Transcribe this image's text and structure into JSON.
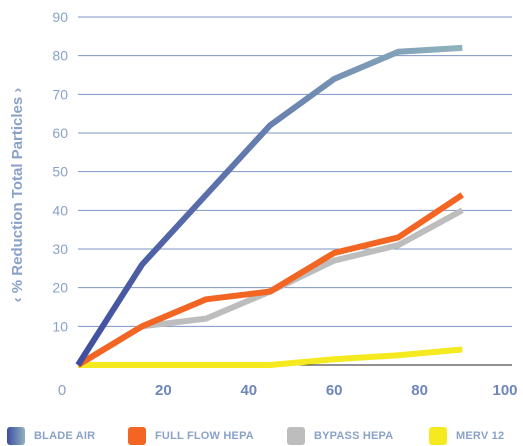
{
  "chart_data": {
    "type": "line",
    "title": "",
    "xlabel": "",
    "ylabel": "‹ % Reduction Total Particles ›",
    "xlim": [
      0,
      100
    ],
    "ylim": [
      0,
      90
    ],
    "x_ticks": [
      "0",
      "20",
      "40",
      "60",
      "80",
      "100"
    ],
    "y_ticks": [
      "10",
      "20",
      "30",
      "40",
      "50",
      "60",
      "70",
      "80",
      "90"
    ],
    "grid": "horizontal",
    "legend_position": "bottom",
    "series": [
      {
        "name": "BLADE AIR",
        "colors": [
          "#3f4da0",
          "#8fb2bd"
        ],
        "x": [
          0,
          15,
          30,
          45,
          60,
          75,
          90
        ],
        "y": [
          0,
          26,
          44,
          62,
          74,
          81,
          82
        ]
      },
      {
        "name": "FULL FLOW HEPA",
        "color": "#f26522",
        "x": [
          0,
          15,
          30,
          45,
          60,
          75,
          90
        ],
        "y": [
          0,
          10,
          17,
          19,
          29,
          33,
          44
        ]
      },
      {
        "name": "BYPASS HEPA",
        "color": "#bdbdbd",
        "x": [
          0,
          15,
          30,
          45,
          60,
          75,
          90
        ],
        "y": [
          0,
          10,
          12,
          19,
          27,
          31,
          40
        ]
      },
      {
        "name": "MERV 12",
        "color": "#f5ea1f",
        "x": [
          0,
          15,
          30,
          45,
          60,
          75,
          90
        ],
        "y": [
          0,
          0,
          0,
          0,
          1.5,
          2.5,
          4
        ]
      }
    ]
  }
}
